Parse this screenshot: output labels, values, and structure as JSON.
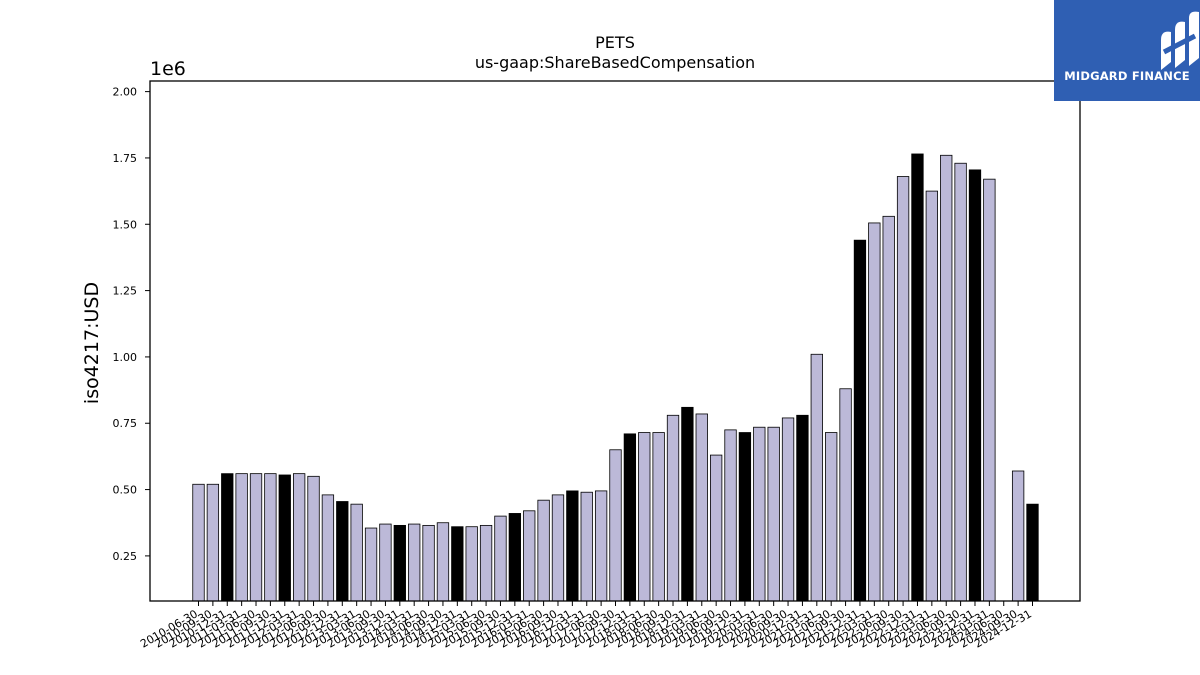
{
  "logo": {
    "text": "MIDGARD FINANCE",
    "icon": "midgard-logo-icon",
    "background": "#2f5fb3"
  },
  "chart_data": {
    "type": "bar",
    "title": "PETS",
    "subtitle": "us-gaap:ShareBasedCompensation",
    "ylabel": "iso4217:USD",
    "xlabel": "",
    "y_multiplier": "1e6",
    "ylim": [
      0.08,
      2.04
    ],
    "yticks": [
      0.25,
      0.5,
      0.75,
      1.0,
      1.25,
      1.5,
      1.75,
      2.0
    ],
    "ytick_labels": [
      "0.25",
      "0.50",
      "0.75",
      "1.00",
      "1.25",
      "1.50",
      "1.75",
      "2.00"
    ],
    "grid": false,
    "colors": {
      "light": "#bcb9d8",
      "dark": "#000000"
    },
    "categories": [
      "2010-06-30",
      "2010-09-30",
      "2010-12-31",
      "2011-03-31",
      "2011-06-30",
      "2011-09-30",
      "2011-12-31",
      "2012-03-31",
      "2012-06-30",
      "2012-09-30",
      "2012-12-31",
      "2013-03-31",
      "2013-06-30",
      "2013-09-30",
      "2013-12-31",
      "2014-03-31",
      "2014-06-30",
      "2014-09-30",
      "2014-12-31",
      "2015-03-31",
      "2015-06-30",
      "2015-09-30",
      "2015-12-31",
      "2016-03-31",
      "2016-06-30",
      "2016-09-30",
      "2016-12-31",
      "2017-03-31",
      "2017-06-30",
      "2017-09-30",
      "2017-12-31",
      "2018-03-31",
      "2018-06-30",
      "2018-09-30",
      "2018-12-31",
      "2019-03-31",
      "2019-06-30",
      "2019-09-30",
      "2019-12-31",
      "2020-03-31",
      "2020-06-30",
      "2020-09-30",
      "2020-12-31",
      "2021-03-31",
      "2021-06-30",
      "2021-09-30",
      "2021-12-31",
      "2022-03-31",
      "2022-06-30",
      "2022-09-30",
      "2022-12-31",
      "2023-03-31",
      "2023-06-30",
      "2023-09-30",
      "2023-12-31",
      "2024-03-31",
      "2024-06-30",
      "2024-09-30",
      "2024-12-31"
    ],
    "values": [
      0.52,
      0.52,
      0.56,
      0.56,
      0.56,
      0.56,
      0.555,
      0.56,
      0.55,
      0.48,
      0.455,
      0.445,
      0.355,
      0.37,
      0.365,
      0.37,
      0.365,
      0.375,
      0.36,
      0.36,
      0.365,
      0.4,
      0.41,
      0.42,
      0.46,
      0.48,
      0.495,
      0.49,
      0.495,
      0.65,
      0.71,
      0.715,
      0.715,
      0.78,
      0.81,
      0.785,
      0.63,
      0.725,
      0.715,
      0.735,
      0.735,
      0.77,
      0.78,
      1.01,
      0.715,
      0.88,
      1.44,
      1.505,
      1.53,
      1.68,
      1.765,
      1.625,
      1.76,
      1.73,
      1.705,
      1.67,
      null,
      0.57,
      0.445
    ],
    "dark": [
      false,
      false,
      true,
      false,
      false,
      false,
      true,
      false,
      false,
      false,
      true,
      false,
      false,
      false,
      true,
      false,
      false,
      false,
      true,
      false,
      false,
      false,
      true,
      false,
      false,
      false,
      true,
      false,
      false,
      false,
      true,
      false,
      false,
      false,
      true,
      false,
      false,
      false,
      true,
      false,
      false,
      false,
      true,
      false,
      false,
      false,
      true,
      false,
      false,
      false,
      true,
      false,
      false,
      false,
      true,
      false,
      false,
      false,
      true
    ]
  }
}
